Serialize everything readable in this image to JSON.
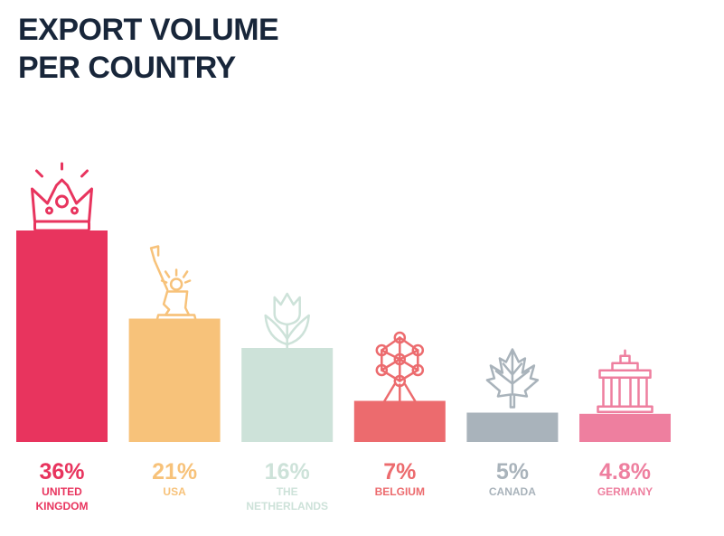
{
  "title_lines": [
    "EXPORT VOLUME",
    "PER COUNTRY"
  ],
  "chart_data": {
    "type": "bar",
    "title": "EXPORT VOLUME PER COUNTRY",
    "ylim": [
      0,
      36
    ],
    "grid": false,
    "legend": "none",
    "data_labels": [
      "36%",
      "21%",
      "16%",
      "7%",
      "5%",
      "4.8%"
    ],
    "categories": [
      {
        "lines": [
          "UNITED",
          "KINGDOM"
        ],
        "value": 36,
        "color": "#e8345e",
        "icon": "crown-icon"
      },
      {
        "lines": [
          "USA"
        ],
        "value": 21,
        "color": "#f7c27a",
        "icon": "statue-of-liberty-icon"
      },
      {
        "lines": [
          "THE",
          "NETHERLANDS"
        ],
        "value": 16,
        "color": "#cde2d9",
        "icon": "tulip-icon"
      },
      {
        "lines": [
          "BELGIUM"
        ],
        "value": 7,
        "color": "#ec6b6e",
        "icon": "atomium-icon"
      },
      {
        "lines": [
          "CANADA"
        ],
        "value": 5,
        "color": "#a9b3bb",
        "icon": "maple-leaf-icon"
      },
      {
        "lines": [
          "GERMANY"
        ],
        "value": 4.8,
        "color": "#ee7f9f",
        "icon": "brandenburg-gate-icon"
      }
    ]
  }
}
